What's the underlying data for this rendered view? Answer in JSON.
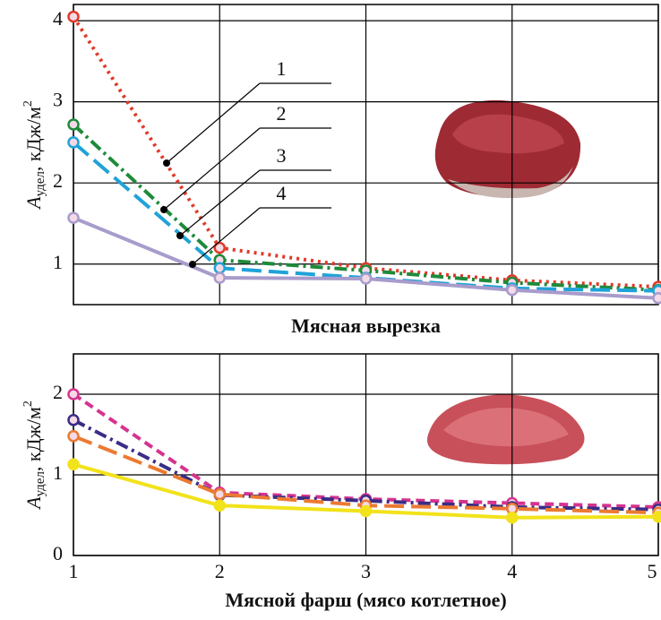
{
  "chart_data": [
    {
      "type": "line",
      "xlabel": "Мясная вырезка",
      "ylabel_parts": [
        "A",
        "удел",
        ", кДж/м",
        "2"
      ],
      "x": [
        1,
        2,
        3,
        4,
        5
      ],
      "xlim": [
        1,
        5
      ],
      "ylim": [
        0.5,
        4.2
      ],
      "yticks": [
        1,
        2,
        3,
        4
      ],
      "grid": true,
      "series": [
        {
          "name": "1",
          "color": "#e03a2a",
          "dash": "dotted",
          "values": [
            4.05,
            1.2,
            0.95,
            0.8,
            0.72
          ]
        },
        {
          "name": "2",
          "color": "#1e8a3a",
          "dash": "dashdot",
          "values": [
            2.72,
            1.05,
            0.92,
            0.77,
            0.68
          ]
        },
        {
          "name": "3",
          "color": "#1fa3d8",
          "dash": "longdash",
          "values": [
            2.5,
            0.95,
            0.83,
            0.7,
            0.67
          ]
        },
        {
          "name": "4",
          "color": "#a89ccc",
          "dash": "solid",
          "values": [
            1.57,
            0.83,
            0.82,
            0.68,
            0.58
          ]
        }
      ]
    },
    {
      "type": "line",
      "xlabel": "Мясной фарш (мясо котлетное)",
      "ylabel_parts": [
        "A",
        "удел",
        ", кДж/м",
        "2"
      ],
      "x": [
        1,
        2,
        3,
        4,
        5
      ],
      "xlim": [
        1,
        5
      ],
      "xticks": [
        1,
        2,
        3,
        4,
        5
      ],
      "ylim": [
        0,
        2.5
      ],
      "yticks": [
        0,
        1,
        2
      ],
      "grid": true,
      "series": [
        {
          "color": "#d6338f",
          "dash": "dashed",
          "values": [
            2.0,
            0.78,
            0.7,
            0.65,
            0.6
          ]
        },
        {
          "color": "#3b2c86",
          "dash": "dashdot",
          "values": [
            1.68,
            0.75,
            0.68,
            0.6,
            0.57
          ]
        },
        {
          "color": "#ec7a32",
          "dash": "longdash",
          "values": [
            1.48,
            0.76,
            0.62,
            0.58,
            0.53
          ]
        },
        {
          "color": "#f2e21a",
          "dash": "solid",
          "values": [
            1.13,
            0.62,
            0.55,
            0.47,
            0.48
          ]
        }
      ]
    }
  ]
}
